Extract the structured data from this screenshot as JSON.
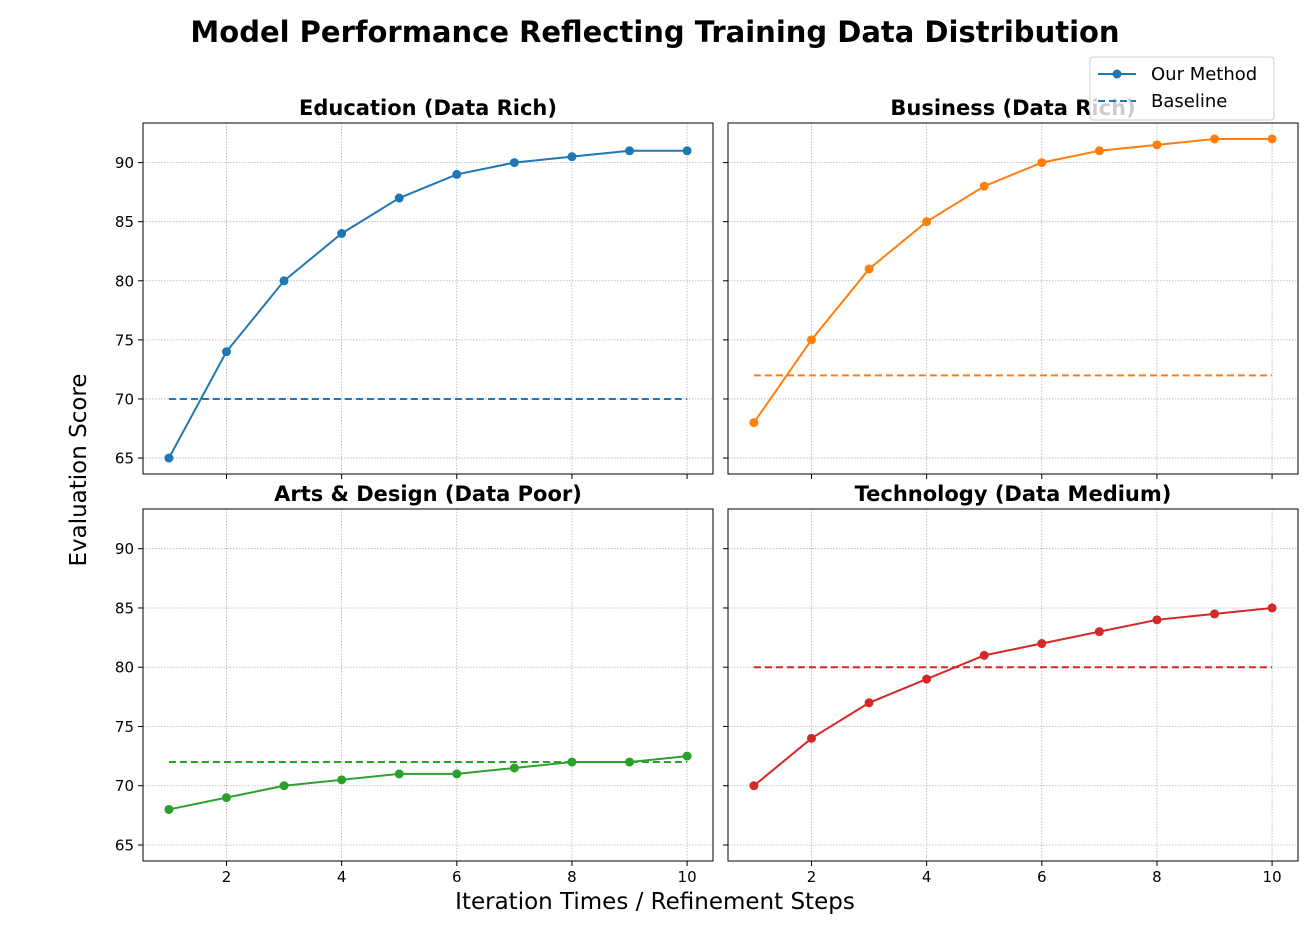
{
  "figure": {
    "title": "Model Performance Reflecting Training Data Distribution",
    "xlabel": "Iteration Times / Refinement Steps",
    "ylabel": "Evaluation Score",
    "legend": {
      "placement": "top-right",
      "entries": [
        "Our Method",
        "Baseline"
      ]
    }
  },
  "chart_data": [
    {
      "type": "line",
      "title": "Education (Data Rich)",
      "color": "#1f77b4",
      "x": [
        1,
        2,
        3,
        4,
        5,
        6,
        7,
        8,
        9,
        10
      ],
      "series": [
        {
          "name": "Our Method",
          "style": "solid-marker",
          "values": [
            65,
            74,
            80,
            84,
            87,
            89,
            90,
            90.5,
            91,
            91
          ]
        },
        {
          "name": "Baseline",
          "style": "dashed",
          "values": [
            70,
            70,
            70,
            70,
            70,
            70,
            70,
            70,
            70,
            70
          ]
        }
      ],
      "xticks": [
        2,
        4,
        6,
        8,
        10
      ],
      "yticks": [
        65,
        70,
        75,
        80,
        85,
        90
      ],
      "ylim": [
        63.65,
        93.35
      ],
      "xlim": [
        0.55,
        10.45
      ],
      "grid": true
    },
    {
      "type": "line",
      "title": "Business (Data Rich)",
      "color": "#ff7f0e",
      "x": [
        1,
        2,
        3,
        4,
        5,
        6,
        7,
        8,
        9,
        10
      ],
      "series": [
        {
          "name": "Our Method",
          "style": "solid-marker",
          "values": [
            68,
            75,
            81,
            85,
            88,
            90,
            91,
            91.5,
            92,
            92
          ]
        },
        {
          "name": "Baseline",
          "style": "dashed",
          "values": [
            72,
            72,
            72,
            72,
            72,
            72,
            72,
            72,
            72,
            72
          ]
        }
      ],
      "xticks": [
        2,
        4,
        6,
        8,
        10
      ],
      "yticks": [
        65,
        70,
        75,
        80,
        85,
        90
      ],
      "ylim": [
        63.65,
        93.35
      ],
      "xlim": [
        0.55,
        10.45
      ],
      "grid": true
    },
    {
      "type": "line",
      "title": "Arts & Design (Data Poor)",
      "color": "#2ca02c",
      "x": [
        1,
        2,
        3,
        4,
        5,
        6,
        7,
        8,
        9,
        10
      ],
      "series": [
        {
          "name": "Our Method",
          "style": "solid-marker",
          "values": [
            68,
            69,
            70,
            70.5,
            71,
            71,
            71.5,
            72,
            72,
            72.5
          ]
        },
        {
          "name": "Baseline",
          "style": "dashed",
          "values": [
            72,
            72,
            72,
            72,
            72,
            72,
            72,
            72,
            72,
            72
          ]
        }
      ],
      "xticks": [
        2,
        4,
        6,
        8,
        10
      ],
      "yticks": [
        65,
        70,
        75,
        80,
        85,
        90
      ],
      "ylim": [
        63.65,
        93.35
      ],
      "xlim": [
        0.55,
        10.45
      ],
      "grid": true
    },
    {
      "type": "line",
      "title": "Technology (Data Medium)",
      "color": "#d62728",
      "x": [
        1,
        2,
        3,
        4,
        5,
        6,
        7,
        8,
        9,
        10
      ],
      "series": [
        {
          "name": "Our Method",
          "style": "solid-marker",
          "values": [
            70,
            74,
            77,
            79,
            81,
            82,
            83,
            84,
            84.5,
            85
          ]
        },
        {
          "name": "Baseline",
          "style": "dashed",
          "values": [
            80,
            80,
            80,
            80,
            80,
            80,
            80,
            80,
            80,
            80
          ]
        }
      ],
      "xticks": [
        2,
        4,
        6,
        8,
        10
      ],
      "yticks": [
        65,
        70,
        75,
        80,
        85,
        90
      ],
      "ylim": [
        63.65,
        93.35
      ],
      "xlim": [
        0.55,
        10.45
      ],
      "grid": true
    }
  ]
}
